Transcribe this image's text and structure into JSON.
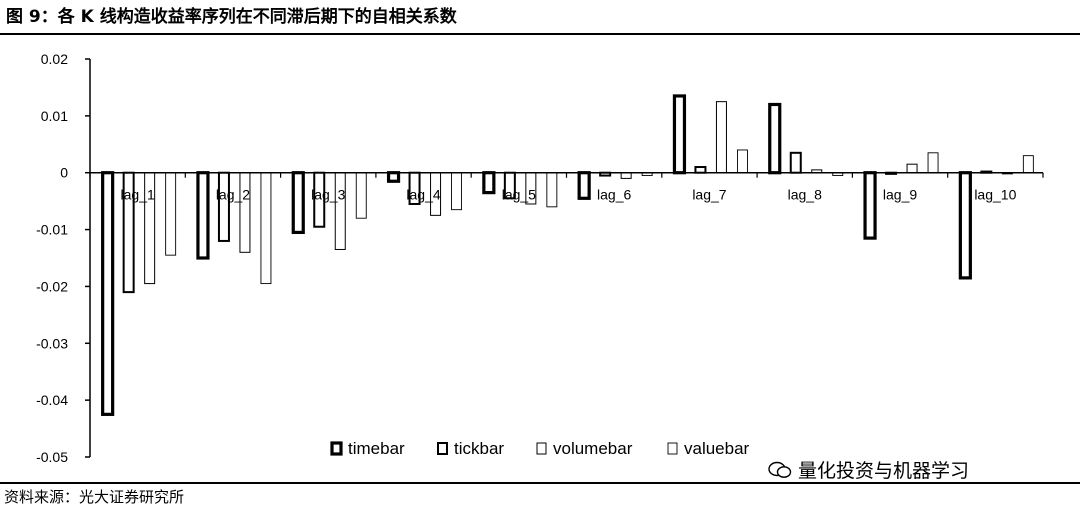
{
  "figure": {
    "title": "图 9：各 K 线构造收益率序列在不同滞后期下的自相关系数",
    "source": "资料来源：光大证券研究所",
    "watermark": "量化投资与机器学习"
  },
  "chart_data": {
    "type": "bar",
    "categories": [
      "lag_1",
      "lag_2",
      "lag_3",
      "lag_4",
      "lag_5",
      "lag_6",
      "lag_7",
      "lag_8",
      "lag_9",
      "lag_10"
    ],
    "series": [
      {
        "name": "timebar",
        "values": [
          -0.0425,
          -0.015,
          -0.0105,
          -0.0015,
          -0.0035,
          -0.0045,
          0.0135,
          0.012,
          -0.0115,
          -0.0185
        ]
      },
      {
        "name": "tickbar",
        "values": [
          -0.021,
          -0.012,
          -0.0095,
          -0.0055,
          -0.0045,
          -0.0005,
          0.001,
          0.0035,
          -0.0002,
          0.0002
        ]
      },
      {
        "name": "volumebar",
        "values": [
          -0.0195,
          -0.014,
          -0.0135,
          -0.0075,
          -0.0055,
          -0.001,
          0.0125,
          0.0005,
          0.0015,
          -0.0002
        ]
      },
      {
        "name": "valuebar",
        "values": [
          -0.0145,
          -0.0195,
          -0.008,
          -0.0065,
          -0.006,
          -0.0005,
          0.004,
          -0.0005,
          0.0035,
          0.003
        ]
      }
    ],
    "yticks": [
      "0.02",
      "0.01",
      "0",
      "-0.01",
      "-0.02",
      "-0.03",
      "-0.04",
      "-0.05"
    ],
    "ylim": [
      -0.05,
      0.02
    ],
    "xlabel": "",
    "ylabel": "",
    "legend_position": "bottom-right",
    "grid": false
  }
}
